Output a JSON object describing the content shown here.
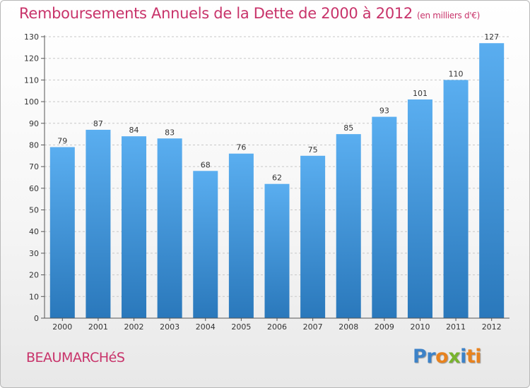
{
  "header": {
    "title": "Remboursements Annuels de la Dette de 2000 à 2012",
    "unit": "(en milliers d'€)"
  },
  "footer": {
    "place": "BEAUMARCHéS",
    "logo": "Proxiti"
  },
  "colors": {
    "title": "#c8336a",
    "bar_top": "#5aaef0",
    "bar_bottom": "#2a78bb",
    "grid": "#c8c8c8",
    "logo": [
      "#3c82c8",
      "#3c82c8",
      "#e8821e",
      "#78b42d",
      "#3c82c8",
      "#e8821e",
      "#e8821e"
    ]
  },
  "chart_data": {
    "type": "bar",
    "categories": [
      "2000",
      "2001",
      "2002",
      "2003",
      "2004",
      "2005",
      "2006",
      "2007",
      "2008",
      "2009",
      "2010",
      "2011",
      "2012"
    ],
    "values": [
      79,
      87,
      84,
      83,
      68,
      76,
      62,
      75,
      85,
      93,
      101,
      110,
      127
    ],
    "title": "Remboursements Annuels de la Dette de 2000 à 2012",
    "ylim": [
      0,
      130
    ],
    "yticks": [
      0,
      10,
      20,
      30,
      40,
      50,
      60,
      70,
      80,
      90,
      100,
      110,
      120,
      130
    ],
    "grid": true,
    "data_labels": true
  }
}
